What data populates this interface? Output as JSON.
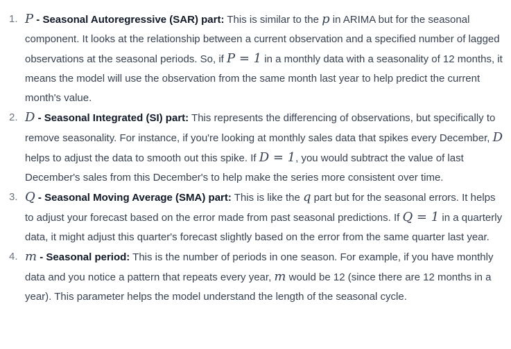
{
  "items": [
    {
      "number": "1.",
      "sym": "P",
      "label": " - Seasonal Autoregressive (SAR) part:",
      "t1": " This is similar to the ",
      "sym2": "p",
      "t2": " in ARIMA but for the seasonal component. It looks at the relationship between a current observation and a specified number of lagged observations at the seasonal periods. So, if ",
      "eq": "P = 1",
      "t3": " in a monthly data with a seasonality of 12 months, it means the model will use the observation from the same month last year to help predict the current month's value."
    },
    {
      "number": "2.",
      "sym": "D",
      "label": " - Seasonal Integrated (SI) part:",
      "t1": " This represents the differencing of observations, but specifically to remove seasonality. For instance, if you're looking at monthly sales data that spikes every December, ",
      "sym2": "D",
      "t2": " helps to adjust the data to smooth out this spike. If ",
      "eq": "D = 1",
      "t3": ", you would subtract the value of last December's sales from this December's to help make the series more consistent over time."
    },
    {
      "number": "3.",
      "sym": "Q",
      "label": " - Seasonal Moving Average (SMA) part:",
      "t1": " This is like the ",
      "sym2": "q",
      "t2": " part but for the seasonal errors. It helps to adjust your forecast based on the error made from past seasonal predictions. If ",
      "eq": "Q = 1",
      "t3": " in a quarterly data, it might adjust this quarter's forecast slightly based on the error from the same quarter last year."
    },
    {
      "number": "4.",
      "sym": "m",
      "label": " - Seasonal period:",
      "t1": " This is the number of periods in one season. For example, if you have monthly data and you notice a pattern that repeats every year, ",
      "sym2": "m",
      "t2": " would be 12 (since there are 12 months in a year). This parameter helps the model understand the length of the seasonal cycle."
    }
  ]
}
